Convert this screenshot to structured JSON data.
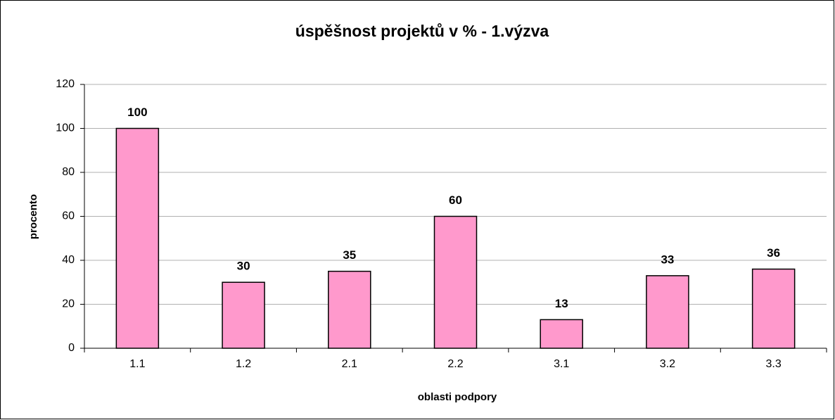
{
  "chart_data": {
    "type": "bar",
    "title": "úspěšnost projektů v % - 1.výzva",
    "x_label": "oblasti podpory",
    "y_label": "procento",
    "categories": [
      "1.1",
      "1.2",
      "2.1",
      "2.2",
      "3.1",
      "3.2",
      "3.3"
    ],
    "values": [
      100,
      30,
      35,
      60,
      13,
      33,
      36
    ],
    "color": "#ff99cc",
    "ylim": [
      0,
      120
    ],
    "yticks": [
      0,
      20,
      40,
      60,
      80,
      100,
      120
    ],
    "grid": true
  }
}
